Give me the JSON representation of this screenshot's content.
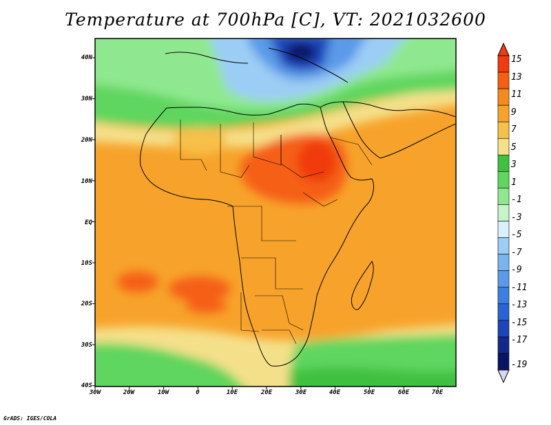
{
  "title": "Temperature at 700hPa [C], VT: 2021032600",
  "credit": "GrADS: IGES/COLA",
  "lat_labels": [
    "40N",
    "30N",
    "20N",
    "10N",
    "EQ",
    "10S",
    "20S",
    "30S",
    "40S"
  ],
  "lon_labels": [
    "30W",
    "20W",
    "10W",
    "0",
    "10E",
    "20E",
    "30E",
    "40E",
    "50E",
    "60E",
    "70E"
  ],
  "colorbar": {
    "labels": [
      "15",
      "13",
      "11",
      "9",
      "7",
      "5",
      "3",
      "1",
      "-1",
      "-3",
      "-5",
      "-7",
      "-9",
      "-11",
      "-13",
      "-15",
      "-17",
      "-19"
    ],
    "colors": [
      "#f03a0f",
      "#f55f12",
      "#f58a1d",
      "#f7a32b",
      "#f7c04a",
      "#f5e08a",
      "#3fc03f",
      "#5fd65f",
      "#8fe88f",
      "#c8f5c8",
      "#d9f0ff",
      "#9ccdf5",
      "#78b5f0",
      "#5a9ae8",
      "#3d7fe0",
      "#2b62d4",
      "#1e45b8",
      "#14288c",
      "#0a1466"
    ]
  }
}
